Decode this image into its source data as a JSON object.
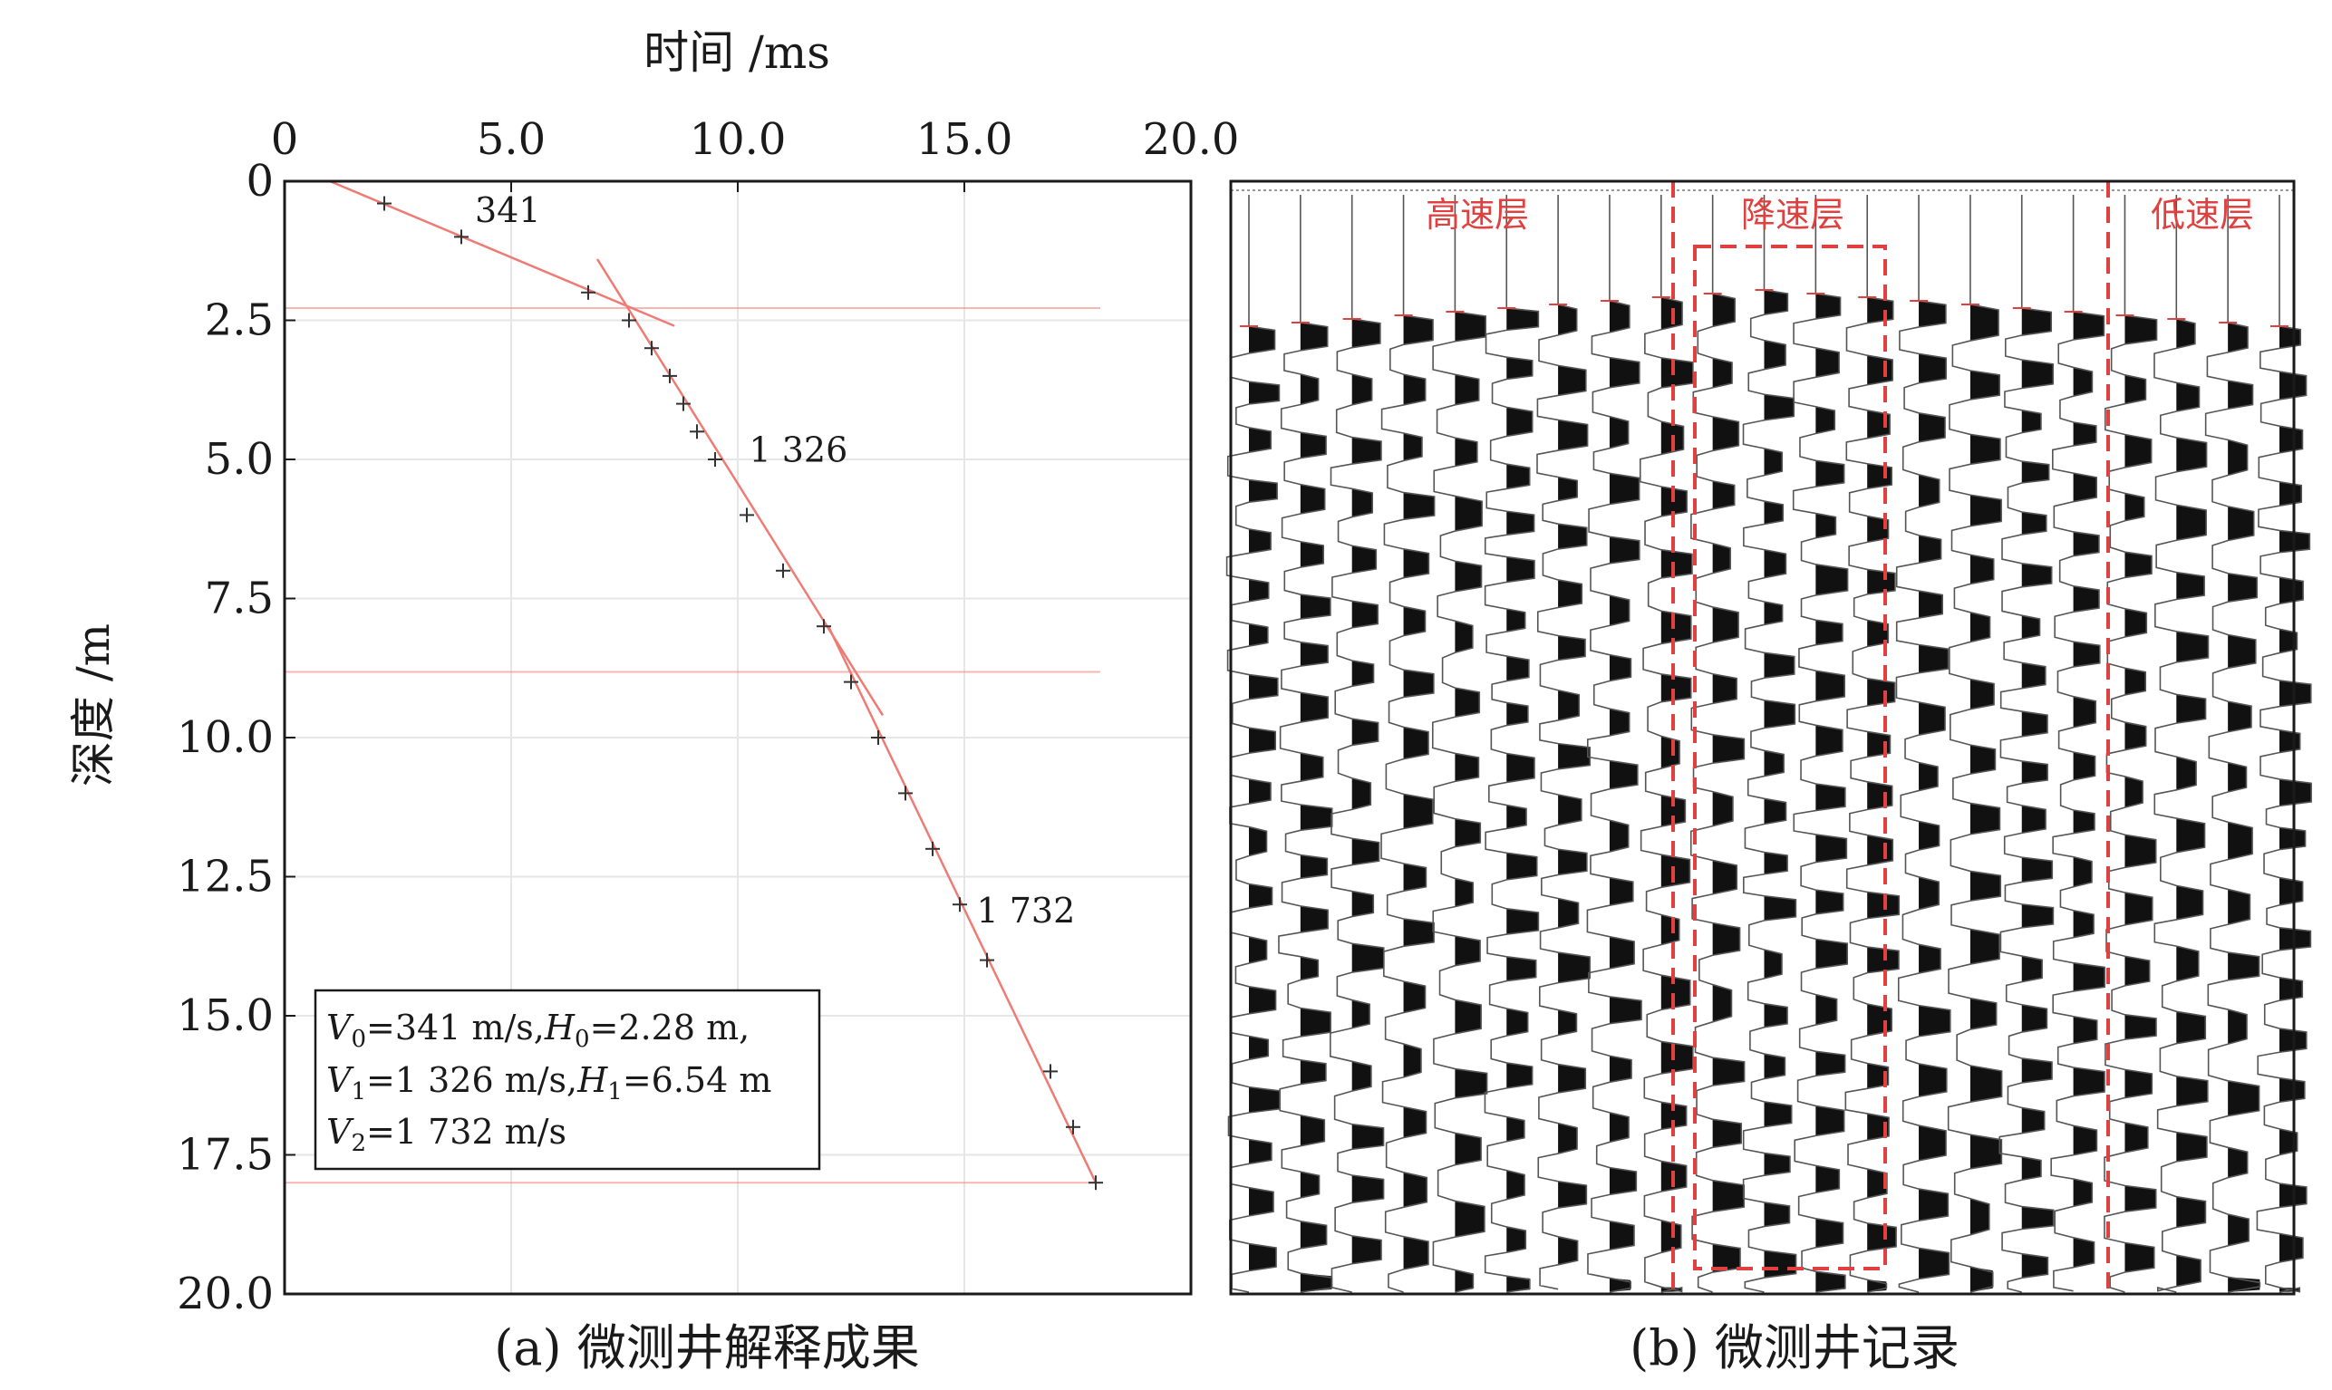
{
  "chart_data": [
    {
      "type": "scatter",
      "panel_caption": "(a) 微测井解释成果",
      "xlabel": "时间 /ms",
      "ylabel": "深度 /m",
      "xlim": [
        0,
        20
      ],
      "ylim": [
        20,
        0
      ],
      "x_ticks": [
        "0",
        "5.0",
        "10.0",
        "15.0",
        "20.0"
      ],
      "y_ticks": [
        "0",
        "2.5",
        "5.0",
        "7.5",
        "10.0",
        "12.5",
        "15.0",
        "17.5",
        "20.0"
      ],
      "grid": true,
      "series": [
        {
          "marker": "plus",
          "points": [
            {
              "x": 2.2,
              "y": 0.4
            },
            {
              "x": 3.9,
              "y": 1.0
            },
            {
              "x": 6.7,
              "y": 2.0
            },
            {
              "x": 7.6,
              "y": 2.5
            },
            {
              "x": 8.1,
              "y": 3.0
            },
            {
              "x": 8.5,
              "y": 3.5
            },
            {
              "x": 8.8,
              "y": 4.0
            },
            {
              "x": 9.1,
              "y": 4.5
            },
            {
              "x": 9.5,
              "y": 5.0
            },
            {
              "x": 10.2,
              "y": 6.0
            },
            {
              "x": 11.0,
              "y": 7.0
            },
            {
              "x": 11.9,
              "y": 8.0
            },
            {
              "x": 12.5,
              "y": 9.0
            },
            {
              "x": 13.1,
              "y": 10.0
            },
            {
              "x": 13.7,
              "y": 11.0
            },
            {
              "x": 14.3,
              "y": 12.0
            },
            {
              "x": 14.9,
              "y": 13.0
            },
            {
              "x": 15.5,
              "y": 14.0
            },
            {
              "x": 16.9,
              "y": 16.0
            },
            {
              "x": 17.4,
              "y": 17.0
            },
            {
              "x": 17.9,
              "y": 18.0
            }
          ]
        }
      ],
      "fit_lines": [
        {
          "label": "341",
          "x": [
            1.0,
            8.6
          ],
          "y": [
            0.0,
            2.6
          ]
        },
        {
          "label": "1 326",
          "x": [
            6.9,
            13.2
          ],
          "y": [
            1.4,
            9.6
          ]
        },
        {
          "label": "1 732",
          "x": [
            12.0,
            17.9
          ],
          "y": [
            8.0,
            18.0
          ]
        }
      ],
      "interface_depths": [
        2.28,
        8.82,
        18.0
      ],
      "legend_lines": [
        {
          "v_sym": "V",
          "v_sub": "0",
          "v_val": "=341 m/s,",
          "h_sym": "H",
          "h_sub": "0",
          "h_val": "=2.28 m,"
        },
        {
          "v_sym": "V",
          "v_sub": "1",
          "v_val": "=1 326 m/s,",
          "h_sym": "H",
          "h_sub": "1",
          "h_val": "=6.54 m"
        },
        {
          "v_sym": "V",
          "v_sub": "2",
          "v_val": "=1 732 m/s",
          "h_sym": "",
          "h_sub": "",
          "h_val": ""
        }
      ],
      "line_color": "#ee7b74",
      "marker_color": "#333333"
    },
    {
      "type": "other",
      "panel_caption": "(b) 微测井记录",
      "trace_count": 21,
      "zones": [
        {
          "label": "高速层"
        },
        {
          "label": "降速层"
        },
        {
          "label": "低速层"
        }
      ],
      "zone_line_color": "#e0403f"
    }
  ]
}
